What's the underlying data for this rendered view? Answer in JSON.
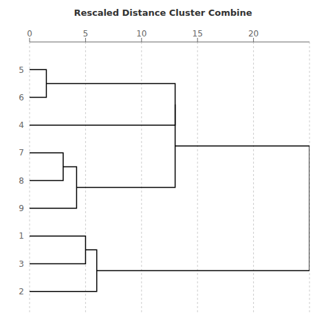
{
  "chart_data": {
    "type": "dendrogram",
    "title": "Rescaled Distance Cluster Combine",
    "categories": [
      "5",
      "6",
      "4",
      "7",
      "8",
      "9",
      "1",
      "3",
      "2"
    ],
    "merges": [
      {
        "children": [
          0,
          1
        ],
        "distance": 1.5
      },
      {
        "children": [
          9,
          2
        ],
        "distance": 13.0
      },
      {
        "children": [
          3,
          4
        ],
        "distance": 3.0
      },
      {
        "children": [
          11,
          5
        ],
        "distance": 4.2
      },
      {
        "children": [
          10,
          12
        ],
        "distance": 13.0
      },
      {
        "children": [
          6,
          7
        ],
        "distance": 5.0
      },
      {
        "children": [
          14,
          8
        ],
        "distance": 6.0
      },
      {
        "children": [
          13,
          15
        ],
        "distance": 25.0
      }
    ],
    "xlim": [
      0,
      25
    ],
    "xticks": [
      0,
      5,
      10,
      15,
      20
    ],
    "grid": true,
    "color": "#000000"
  }
}
